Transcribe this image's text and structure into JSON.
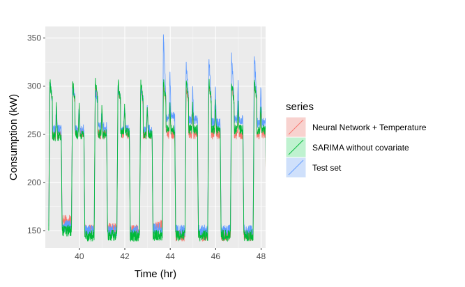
{
  "chart_data": {
    "type": "line",
    "title": "",
    "xlabel": "Time (hr)",
    "ylabel": "Consumption (kW)",
    "xlim": [
      38.5,
      48.2
    ],
    "ylim": [
      132,
      362
    ],
    "x_ticks": [
      40,
      42,
      44,
      46,
      48
    ],
    "y_ticks": [
      150,
      200,
      250,
      300,
      350
    ],
    "grid": true,
    "panel_background": "#ebebeb",
    "legend": {
      "title": "series",
      "placement": "right"
    },
    "cycle": {
      "start": 38.65,
      "period_hours": 1.0,
      "high_phase_hours": 0.55,
      "count": 10
    },
    "series": [
      {
        "name": "Neural Network + Temperature",
        "color": "#F8766D",
        "fill": "#F8D2CF",
        "low": [
          160,
          150,
          152,
          150,
          155,
          145,
          145,
          145,
          145,
          145
        ],
        "peak": [
          305,
          300,
          300,
          300,
          300,
          300,
          300,
          300,
          300,
          300
        ],
        "plateau": [
          250,
          252,
          250,
          250,
          250,
          250,
          250,
          250,
          250,
          250
        ]
      },
      {
        "name": "SARIMA without covariate",
        "color": "#00BA38",
        "fill": "#BFF2D0",
        "low": [
          150,
          145,
          145,
          145,
          145,
          145,
          145,
          145,
          145,
          145
        ],
        "peak": [
          305,
          305,
          305,
          305,
          305,
          305,
          305,
          305,
          305,
          305
        ],
        "plateau": [
          248,
          250,
          250,
          252,
          250,
          255,
          255,
          255,
          255,
          255
        ]
      },
      {
        "name": "Test set",
        "color": "#619CFF",
        "fill": "#CFE0FB",
        "low": [
          155,
          150,
          150,
          150,
          152,
          150,
          150,
          150,
          150,
          150
        ],
        "peak": [
          305,
          300,
          295,
          298,
          300,
          355,
          325,
          330,
          335,
          335
        ],
        "plateau": [
          255,
          255,
          258,
          255,
          255,
          268,
          265,
          262,
          265,
          262
        ]
      }
    ]
  }
}
